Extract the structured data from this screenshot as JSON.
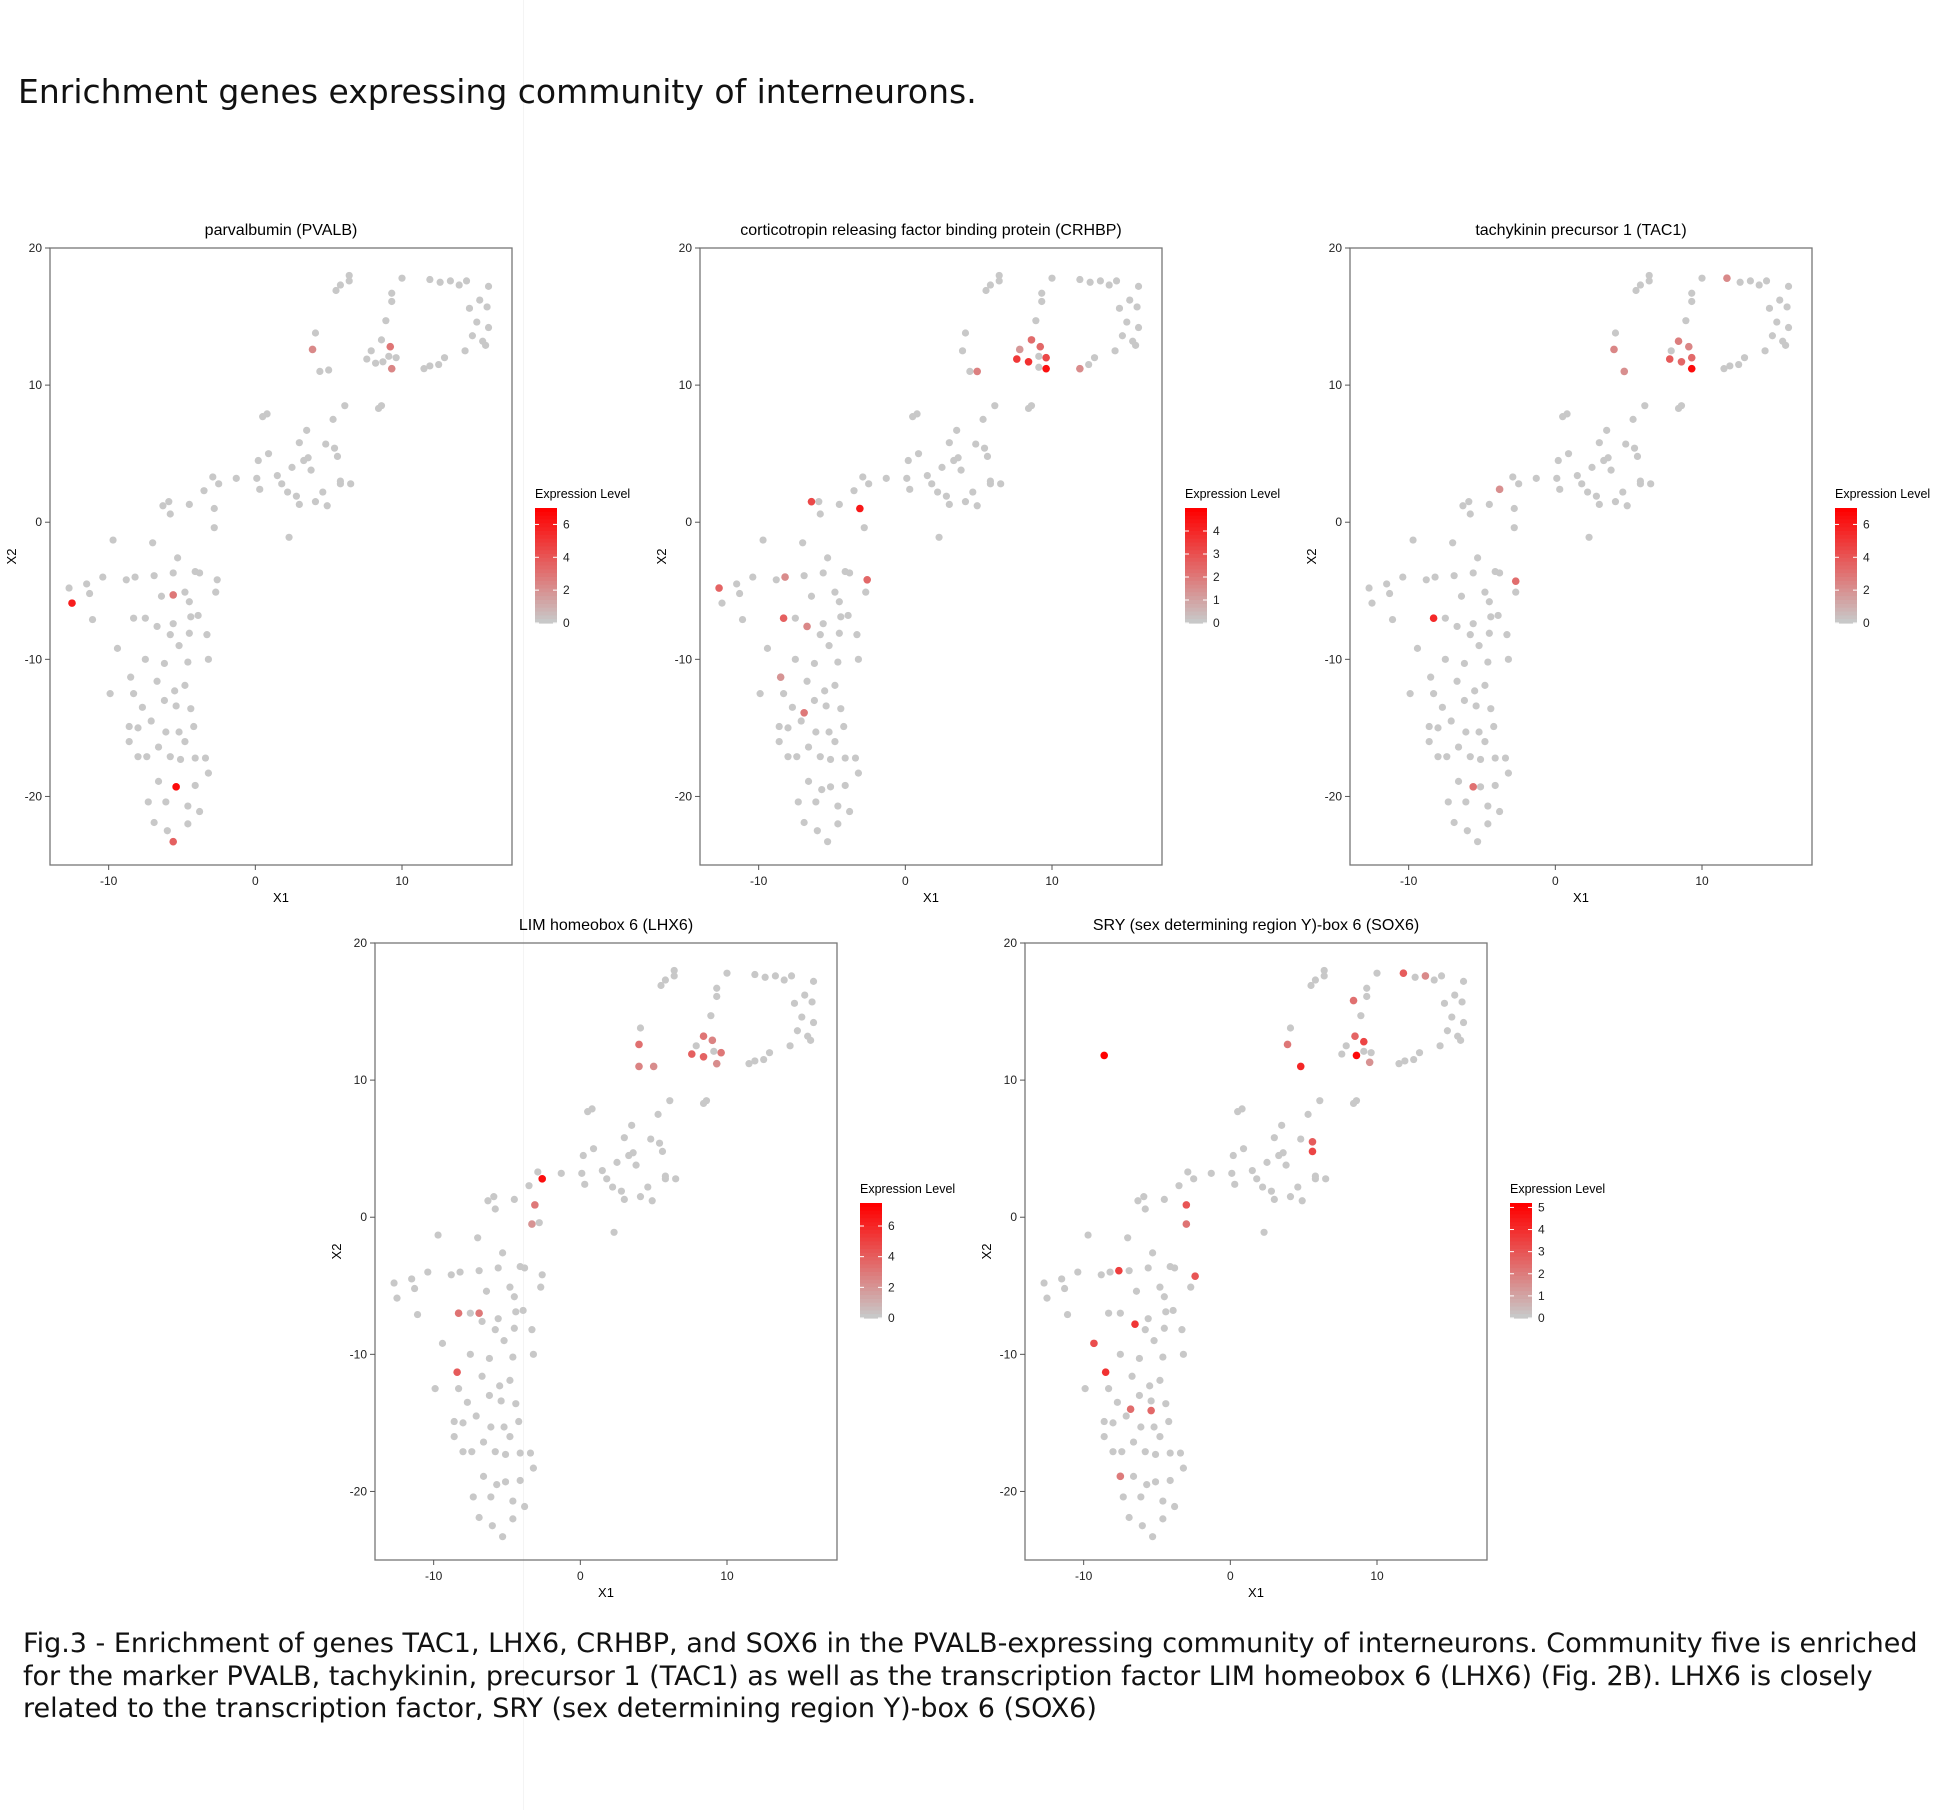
{
  "page_title": "Enrichment genes expressing community of interneurons.",
  "caption": "Fig.3 - Enrichment of genes TAC1, LHX6, CRHBP, and SOX6 in the PVALB-expressing community of interneurons. Community five is enriched for the marker PVALB, tachykinin, precursor 1 (TAC1) as well as the transcription factor LIM homeobox 6 (LHX6) (Fig. 2B). LHX6 is closely related to the transcription factor, SRY (sex determining region Y)-box 6 (SOX6)",
  "colors": {
    "low": "#c8c8c8",
    "high": "#ff0000",
    "axis": "#555555"
  },
  "shared_points": [
    [
      -12.7,
      -4.8
    ],
    [
      -12.5,
      -5.9
    ],
    [
      -11.5,
      -4.5
    ],
    [
      -11.3,
      -5.2
    ],
    [
      -11.1,
      -7.1
    ],
    [
      -10.4,
      -4.0
    ],
    [
      -9.7,
      -1.3
    ],
    [
      -9.9,
      -12.5
    ],
    [
      -9.4,
      -9.2
    ],
    [
      -8.8,
      -4.2
    ],
    [
      -8.6,
      -14.9
    ],
    [
      -8.6,
      -16.0
    ],
    [
      -8.5,
      -11.3
    ],
    [
      -8.3,
      -7.0
    ],
    [
      -8.3,
      -12.5
    ],
    [
      -8.2,
      -4.0
    ],
    [
      -8.0,
      -15.0
    ],
    [
      -8.0,
      -17.1
    ],
    [
      -7.7,
      -13.5
    ],
    [
      -7.5,
      -7.0
    ],
    [
      -7.5,
      -10.0
    ],
    [
      -7.4,
      -17.1
    ],
    [
      -7.3,
      -20.4
    ],
    [
      -7.1,
      -14.5
    ],
    [
      -7.0,
      -1.5
    ],
    [
      -6.9,
      -21.9
    ],
    [
      -6.9,
      -3.9
    ],
    [
      -6.7,
      -7.6
    ],
    [
      -6.7,
      -11.6
    ],
    [
      -6.6,
      -16.4
    ],
    [
      -6.6,
      -18.9
    ],
    [
      -6.4,
      -5.4
    ],
    [
      -6.3,
      1.2
    ],
    [
      -6.2,
      -10.3
    ],
    [
      -6.2,
      -13.0
    ],
    [
      -6.1,
      -15.3
    ],
    [
      -6.1,
      -20.4
    ],
    [
      -6.0,
      -22.5
    ],
    [
      -5.9,
      1.5
    ],
    [
      -5.8,
      -8.2
    ],
    [
      -5.8,
      0.6
    ],
    [
      -5.8,
      -17.1
    ],
    [
      -5.7,
      -19.5
    ],
    [
      -5.6,
      -3.7
    ],
    [
      -5.6,
      -7.4
    ],
    [
      -5.5,
      -12.3
    ],
    [
      -5.4,
      -13.4
    ],
    [
      -5.3,
      -23.3
    ],
    [
      -5.3,
      -2.6
    ],
    [
      -5.2,
      -9.0
    ],
    [
      -5.2,
      -15.3
    ],
    [
      -5.1,
      -17.3
    ],
    [
      -5.1,
      -19.3
    ],
    [
      -4.8,
      -11.9
    ],
    [
      -4.8,
      -16.0
    ],
    [
      -4.8,
      -5.1
    ],
    [
      -4.6,
      -20.7
    ],
    [
      -4.6,
      -22.0
    ],
    [
      -4.6,
      -10.2
    ],
    [
      -4.5,
      -5.8
    ],
    [
      -4.5,
      -8.1
    ],
    [
      -4.5,
      1.3
    ],
    [
      -4.4,
      -13.6
    ],
    [
      -4.4,
      -6.9
    ],
    [
      -4.2,
      -14.9
    ],
    [
      -4.1,
      -19.2
    ],
    [
      -4.1,
      -3.6
    ],
    [
      -4.1,
      -17.2
    ],
    [
      -3.9,
      -6.8
    ],
    [
      -3.8,
      -21.1
    ],
    [
      -3.8,
      -3.7
    ],
    [
      -3.5,
      2.3
    ],
    [
      -3.4,
      -17.2
    ],
    [
      -3.3,
      -8.2
    ],
    [
      -3.2,
      -10.0
    ],
    [
      -3.2,
      -18.3
    ],
    [
      -2.9,
      3.3
    ],
    [
      -2.7,
      -5.1
    ],
    [
      -2.6,
      -4.2
    ],
    [
      -2.5,
      2.8
    ],
    [
      -2.8,
      -0.4
    ],
    [
      -2.8,
      1.0
    ],
    [
      -1.3,
      3.2
    ],
    [
      0.1,
      3.2
    ],
    [
      0.2,
      4.5
    ],
    [
      0.3,
      2.4
    ],
    [
      0.5,
      7.7
    ],
    [
      0.8,
      7.9
    ],
    [
      0.9,
      5.0
    ],
    [
      1.5,
      3.4
    ],
    [
      1.8,
      2.8
    ],
    [
      2.2,
      2.2
    ],
    [
      2.3,
      -1.1
    ],
    [
      2.5,
      4.0
    ],
    [
      2.8,
      1.9
    ],
    [
      3.0,
      5.8
    ],
    [
      3.0,
      1.3
    ],
    [
      3.3,
      4.5
    ],
    [
      3.5,
      6.7
    ],
    [
      3.6,
      4.7
    ],
    [
      3.8,
      3.8
    ],
    [
      4.1,
      1.5
    ],
    [
      4.6,
      2.2
    ],
    [
      4.8,
      5.7
    ],
    [
      4.9,
      1.2
    ],
    [
      5.4,
      5.4
    ],
    [
      5.3,
      7.5
    ],
    [
      5.6,
      4.8
    ],
    [
      5.8,
      3.0
    ],
    [
      5.8,
      2.8
    ],
    [
      6.1,
      8.5
    ],
    [
      6.5,
      2.8
    ],
    [
      4.4,
      11.0
    ],
    [
      3.9,
      12.5
    ],
    [
      4.1,
      13.8
    ],
    [
      5.0,
      11.1
    ],
    [
      5.5,
      16.9
    ],
    [
      5.8,
      17.3
    ],
    [
      6.4,
      17.6
    ],
    [
      6.4,
      18.0
    ],
    [
      7.9,
      12.5
    ],
    [
      7.6,
      11.9
    ],
    [
      8.2,
      11.6
    ],
    [
      8.4,
      8.3
    ],
    [
      8.6,
      8.5
    ],
    [
      8.6,
      13.3
    ],
    [
      8.7,
      11.7
    ],
    [
      8.9,
      14.7
    ],
    [
      9.1,
      12.1
    ],
    [
      9.1,
      11.3
    ],
    [
      9.2,
      12.8
    ],
    [
      9.3,
      16.1
    ],
    [
      9.3,
      16.7
    ],
    [
      9.6,
      12.0
    ],
    [
      10.0,
      17.8
    ],
    [
      11.5,
      11.2
    ],
    [
      11.9,
      11.4
    ],
    [
      11.9,
      17.7
    ],
    [
      12.5,
      11.5
    ],
    [
      12.6,
      17.5
    ],
    [
      12.9,
      12.0
    ],
    [
      13.3,
      17.6
    ],
    [
      13.9,
      17.3
    ],
    [
      14.3,
      12.5
    ],
    [
      14.4,
      17.6
    ],
    [
      14.6,
      15.6
    ],
    [
      14.8,
      13.6
    ],
    [
      15.1,
      14.6
    ],
    [
      15.3,
      16.2
    ],
    [
      15.5,
      13.2
    ],
    [
      15.7,
      12.9
    ],
    [
      15.8,
      15.7
    ],
    [
      15.9,
      17.2
    ],
    [
      15.9,
      14.2
    ]
  ],
  "chart_data": [
    {
      "type": "scatter",
      "title": "parvalbumin (PVALB)",
      "xlabel": "X1",
      "ylabel": "X2",
      "xlim": [
        -14,
        17.5
      ],
      "ylim": [
        -25,
        20
      ],
      "xticks": [
        -10,
        0,
        10
      ],
      "yticks": [
        -20,
        -10,
        0,
        10,
        20
      ],
      "legend": {
        "title": "Expression Level",
        "min": 0,
        "max": 7,
        "ticks": [
          0,
          2,
          4,
          6
        ],
        "position": "right"
      },
      "expressed": [
        [
          -12.5,
          -5.9,
          6.0
        ],
        [
          -5.4,
          -19.3,
          6.6
        ],
        [
          -5.6,
          -5.3,
          2.8
        ],
        [
          -5.6,
          -23.3,
          3.6
        ],
        [
          3.9,
          12.6,
          2.2
        ],
        [
          9.2,
          12.8,
          2.9
        ],
        [
          9.3,
          11.2,
          2.3
        ]
      ]
    },
    {
      "type": "scatter",
      "title": "corticotropin releasing factor binding protein (CRHBP)",
      "xlabel": "X1",
      "ylabel": "X2",
      "xlim": [
        -14,
        17.5
      ],
      "ylim": [
        -25,
        20
      ],
      "xticks": [
        -10,
        0,
        10
      ],
      "yticks": [
        -20,
        -10,
        0,
        10,
        20
      ],
      "legend": {
        "title": "Expression Level",
        "min": 0,
        "max": 5,
        "ticks": [
          0,
          1,
          2,
          3,
          4
        ],
        "position": "right"
      },
      "expressed": [
        [
          -12.7,
          -4.8,
          2.5
        ],
        [
          -8.3,
          -7.0,
          2.6
        ],
        [
          -8.2,
          -4.0,
          1.5
        ],
        [
          -8.5,
          -11.3,
          1.3
        ],
        [
          -6.4,
          1.5,
          3.2
        ],
        [
          -6.9,
          -13.9,
          2.0
        ],
        [
          -6.7,
          -7.6,
          1.6
        ],
        [
          -3.1,
          1.0,
          4.4
        ],
        [
          -2.6,
          -4.2,
          2.4
        ],
        [
          4.9,
          11.0,
          1.8
        ],
        [
          7.6,
          11.9,
          3.6
        ],
        [
          8.4,
          11.7,
          3.8
        ],
        [
          8.6,
          13.3,
          2.3
        ],
        [
          9.2,
          12.8,
          2.4
        ],
        [
          9.6,
          12.0,
          3.2
        ],
        [
          9.6,
          11.2,
          4.6
        ],
        [
          11.9,
          11.2,
          1.5
        ],
        [
          7.8,
          12.6,
          1.2
        ]
      ]
    },
    {
      "type": "scatter",
      "title": "tachykinin precursor 1 (TAC1)",
      "xlabel": "X1",
      "ylabel": "X2",
      "xlim": [
        -14,
        17.5
      ],
      "ylim": [
        -25,
        20
      ],
      "xticks": [
        -10,
        0,
        10
      ],
      "yticks": [
        -20,
        -10,
        0,
        10,
        20
      ],
      "legend": {
        "title": "Expression Level",
        "min": 0,
        "max": 7,
        "ticks": [
          0,
          2,
          4,
          6
        ],
        "position": "right"
      },
      "expressed": [
        [
          -8.3,
          -7.0,
          5.6
        ],
        [
          -5.6,
          -19.3,
          3.0
        ],
        [
          -3.8,
          2.4,
          2.0
        ],
        [
          -2.7,
          -4.3,
          3.2
        ],
        [
          4.0,
          12.6,
          2.3
        ],
        [
          4.7,
          11.0,
          2.0
        ],
        [
          7.8,
          11.9,
          3.8
        ],
        [
          8.6,
          11.7,
          3.4
        ],
        [
          8.4,
          13.2,
          2.6
        ],
        [
          9.1,
          12.8,
          2.3
        ],
        [
          9.3,
          12.0,
          3.3
        ],
        [
          9.3,
          11.2,
          6.6
        ],
        [
          11.7,
          17.8,
          2.2
        ]
      ]
    },
    {
      "type": "scatter",
      "title": "LIM homeobox 6 (LHX6)",
      "xlabel": "X1",
      "ylabel": "X2",
      "xlim": [
        -14,
        17.5
      ],
      "ylim": [
        -25,
        20
      ],
      "xticks": [
        -10,
        0,
        10
      ],
      "yticks": [
        -20,
        -10,
        0,
        10,
        20
      ],
      "legend": {
        "title": "Expression Level",
        "min": 0,
        "max": 7.5,
        "ticks": [
          0,
          2,
          4,
          6
        ],
        "position": "right"
      },
      "expressed": [
        [
          -2.6,
          2.8,
          7.0
        ],
        [
          -8.3,
          -7.0,
          3.2
        ],
        [
          -6.9,
          -7.0,
          3.0
        ],
        [
          -8.4,
          -11.3,
          4.1
        ],
        [
          -3.1,
          0.9,
          3.0
        ],
        [
          -3.3,
          -0.5,
          2.0
        ],
        [
          4.0,
          12.6,
          3.3
        ],
        [
          4.0,
          11.0,
          2.6
        ],
        [
          5.0,
          11.0,
          2.2
        ],
        [
          7.6,
          11.9,
          3.9
        ],
        [
          8.4,
          11.7,
          3.8
        ],
        [
          8.4,
          13.2,
          3.1
        ],
        [
          9.0,
          12.9,
          2.6
        ],
        [
          9.6,
          12.0,
          3.0
        ],
        [
          9.3,
          11.2,
          2.2
        ]
      ]
    },
    {
      "type": "scatter",
      "title": "SRY (sex determining region Y)-box 6 (SOX6)",
      "xlabel": "X1",
      "ylabel": "X2",
      "xlim": [
        -14,
        17.5
      ],
      "ylim": [
        -25,
        20
      ],
      "xticks": [
        -10,
        0,
        10
      ],
      "yticks": [
        -20,
        -10,
        0,
        10,
        20
      ],
      "legend": {
        "title": "Expression Level",
        "min": 0,
        "max": 5.2,
        "ticks": [
          0,
          1,
          2,
          3,
          4,
          5
        ],
        "position": "right"
      },
      "expressed": [
        [
          -8.6,
          11.8,
          5.4
        ],
        [
          -9.3,
          -9.2,
          3.2
        ],
        [
          -8.5,
          -11.3,
          3.9
        ],
        [
          -7.6,
          -3.9,
          3.6
        ],
        [
          -6.5,
          -7.8,
          3.8
        ],
        [
          -6.8,
          -14.0,
          2.4
        ],
        [
          -5.4,
          -14.1,
          2.5
        ],
        [
          -7.5,
          -18.9,
          2.0
        ],
        [
          -3.0,
          0.9,
          3.0
        ],
        [
          -3.0,
          -0.5,
          2.2
        ],
        [
          -2.4,
          -4.3,
          3.0
        ],
        [
          3.9,
          12.6,
          2.1
        ],
        [
          4.8,
          11.0,
          4.2
        ],
        [
          5.6,
          5.5,
          2.8
        ],
        [
          5.6,
          4.8,
          3.4
        ],
        [
          8.4,
          15.8,
          2.3
        ],
        [
          8.5,
          13.2,
          2.6
        ],
        [
          9.1,
          12.8,
          3.4
        ],
        [
          8.6,
          11.8,
          5.0
        ],
        [
          11.8,
          17.8,
          2.8
        ],
        [
          13.3,
          17.6,
          1.6
        ],
        [
          9.5,
          11.3,
          1.4
        ]
      ]
    }
  ]
}
